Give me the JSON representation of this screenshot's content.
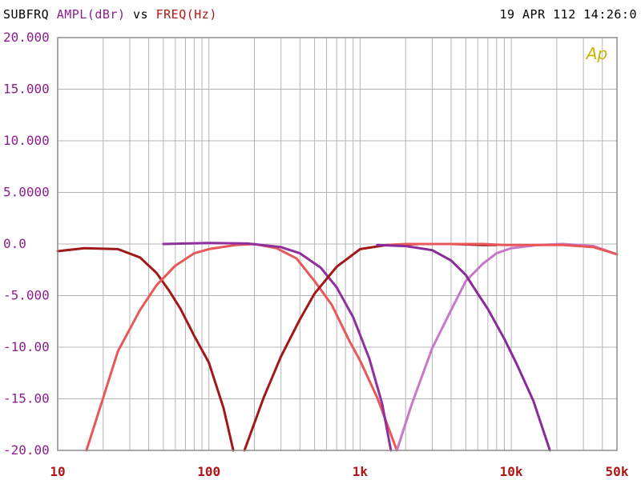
{
  "header": {
    "sweep": "SUBFRQ",
    "y_quantity": "AMPL(dBr)",
    "vs": "vs",
    "x_quantity": "FREQ(Hz)",
    "timestamp": "19 APR 112 14:26:0"
  },
  "logo": "Ap",
  "colors": {
    "grid": "#b4b4b4",
    "frame": "#8c8c8c",
    "y_ticks": "#8e1e8e",
    "x_ticks": "#b01515",
    "logo": "#c8b400"
  },
  "chart_data": {
    "type": "line",
    "xscale": "log",
    "xlim": [
      10,
      50000
    ],
    "ylim": [
      -20,
      20
    ],
    "grid": true,
    "xlabel": "FREQ(Hz)",
    "ylabel": "AMPL(dBr)",
    "y_tick_labels": [
      {
        "value": 20,
        "label": "20.000"
      },
      {
        "value": 15,
        "label": "15.000"
      },
      {
        "value": 10,
        "label": "10.000"
      },
      {
        "value": 5,
        "label": "5.0000"
      },
      {
        "value": 0,
        "label": "0.0"
      },
      {
        "value": -5,
        "label": "-5.000"
      },
      {
        "value": -10,
        "label": "-10.00"
      },
      {
        "value": -15,
        "label": "-15.00"
      },
      {
        "value": -20,
        "label": "-20.00"
      }
    ],
    "x_tick_labels": [
      {
        "value": 10,
        "label": "10"
      },
      {
        "value": 100,
        "label": "100"
      },
      {
        "value": 1000,
        "label": "1k"
      },
      {
        "value": 10000,
        "label": "10k"
      },
      {
        "value": 50000,
        "label": "50k"
      }
    ],
    "series": [
      {
        "color": "#a01818",
        "points": [
          [
            10,
            -0.7
          ],
          [
            15,
            -0.4
          ],
          [
            25,
            -0.5
          ],
          [
            35,
            -1.3
          ],
          [
            45,
            -2.8
          ],
          [
            55,
            -4.6
          ],
          [
            65,
            -6.3
          ],
          [
            80,
            -8.9
          ],
          [
            100,
            -11.5
          ],
          [
            125,
            -15.9
          ],
          [
            145,
            -20
          ]
        ]
      },
      {
        "color": "#e85858",
        "points": [
          [
            15.5,
            -20
          ],
          [
            20,
            -14.9
          ],
          [
            25,
            -10.4
          ],
          [
            35,
            -6.4
          ],
          [
            45,
            -4.0
          ],
          [
            60,
            -2.1
          ],
          [
            80,
            -0.9
          ],
          [
            100,
            -0.5
          ],
          [
            150,
            -0.1
          ],
          [
            200,
            0
          ],
          [
            280,
            -0.4
          ],
          [
            380,
            -1.4
          ],
          [
            500,
            -3.6
          ],
          [
            650,
            -5.9
          ],
          [
            850,
            -9.4
          ],
          [
            1000,
            -11.3
          ],
          [
            1300,
            -14.9
          ],
          [
            1750,
            -20
          ]
        ]
      },
      {
        "color": "#9030a0",
        "points": [
          [
            50,
            0
          ],
          [
            100,
            0.1
          ],
          [
            180,
            0.05
          ],
          [
            300,
            -0.3
          ],
          [
            400,
            -0.9
          ],
          [
            550,
            -2.3
          ],
          [
            700,
            -4.2
          ],
          [
            900,
            -7.1
          ],
          [
            1150,
            -11.1
          ],
          [
            1400,
            -15.5
          ],
          [
            1600,
            -20
          ]
        ]
      },
      {
        "color": "#a01818",
        "points": [
          [
            172,
            -20
          ],
          [
            230,
            -14.9
          ],
          [
            300,
            -10.9
          ],
          [
            400,
            -7.3
          ],
          [
            500,
            -4.8
          ],
          [
            700,
            -2.2
          ],
          [
            1000,
            -0.5
          ],
          [
            1500,
            -0.1
          ],
          [
            2500,
            0
          ],
          [
            4000,
            0
          ],
          [
            6500,
            -0.1
          ],
          [
            8000,
            -0.1
          ]
        ]
      },
      {
        "color": "#c878c8",
        "points": [
          [
            1750,
            -20
          ],
          [
            2200,
            -15.5
          ],
          [
            3000,
            -10.1
          ],
          [
            4000,
            -6.4
          ],
          [
            5000,
            -3.6
          ],
          [
            6500,
            -1.9
          ],
          [
            8000,
            -0.9
          ],
          [
            10000,
            -0.4
          ],
          [
            15000,
            -0.1
          ],
          [
            22000,
            0
          ],
          [
            35000,
            -0.2
          ],
          [
            50000,
            -1.0
          ]
        ]
      },
      {
        "color": "#e85858",
        "points": [
          [
            1500,
            -0.1
          ],
          [
            2000,
            0
          ],
          [
            4000,
            0
          ],
          [
            6500,
            0
          ],
          [
            9000,
            -0.1
          ],
          [
            15000,
            -0.1
          ],
          [
            22000,
            -0.1
          ],
          [
            35000,
            -0.3
          ],
          [
            50000,
            -1.0
          ]
        ]
      },
      {
        "color": "#8a2a9a",
        "points": [
          [
            1300,
            -0.1
          ],
          [
            2000,
            -0.2
          ],
          [
            3000,
            -0.6
          ],
          [
            4000,
            -1.6
          ],
          [
            5000,
            -3.0
          ],
          [
            6000,
            -4.8
          ],
          [
            7000,
            -6.3
          ],
          [
            9000,
            -9.2
          ],
          [
            11000,
            -11.8
          ],
          [
            14000,
            -15.2
          ],
          [
            18000,
            -20
          ]
        ]
      }
    ]
  }
}
